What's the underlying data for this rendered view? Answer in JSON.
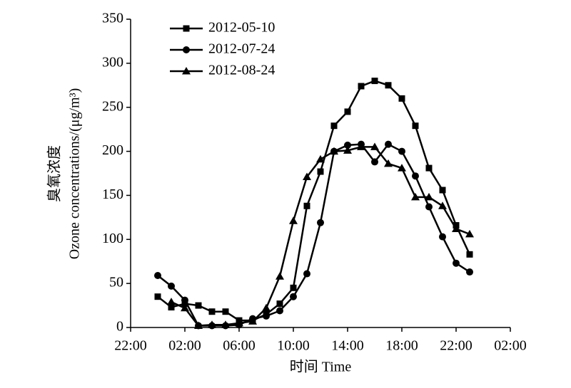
{
  "chart_data": {
    "type": "line",
    "y_label_cn": "臭氧浓度",
    "y_label": "Ozone concentrations/(μg/m³)",
    "x_label": "时间 Time",
    "x": [
      24,
      25,
      26,
      27,
      28,
      29,
      30,
      31,
      32,
      33,
      34,
      35,
      36,
      37,
      38,
      39,
      40,
      41,
      42,
      43,
      44,
      45,
      46,
      47
    ],
    "series": [
      {
        "name": "2012-05-10",
        "color": "#000000",
        "marker": "square",
        "values": [
          35,
          23,
          27,
          25,
          18,
          18,
          8,
          8,
          15,
          27,
          45,
          138,
          177,
          229,
          245,
          274,
          280,
          275,
          260,
          229,
          181,
          156,
          116,
          83
        ]
      },
      {
        "name": "2012-07-24",
        "color": "#000000",
        "marker": "circle",
        "values": [
          59,
          47,
          31,
          2,
          2,
          2,
          3,
          10,
          13,
          19,
          35,
          61,
          119,
          200,
          207,
          208,
          188,
          208,
          200,
          172,
          137,
          103,
          73,
          63
        ]
      },
      {
        "name": "2012-08-24",
        "color": "#000000",
        "marker": "triangle",
        "values": [
          null,
          29,
          22,
          2,
          3,
          3,
          5,
          7,
          22,
          58,
          121,
          171,
          191,
          200,
          201,
          205,
          205,
          186,
          181,
          148,
          148,
          138,
          112,
          106
        ]
      }
    ],
    "xlim": [
      22,
      50
    ],
    "xticks": [
      {
        "value": 22,
        "label": "22:00"
      },
      {
        "value": 26,
        "label": "02:00"
      },
      {
        "value": 30,
        "label": "06:00"
      },
      {
        "value": 34,
        "label": "10:00"
      },
      {
        "value": 38,
        "label": "14:00"
      },
      {
        "value": 42,
        "label": "18:00"
      },
      {
        "value": 46,
        "label": "22:00"
      },
      {
        "value": 50,
        "label": "02:00"
      }
    ],
    "ylim": [
      0,
      350
    ],
    "yticks": [
      0,
      50,
      100,
      150,
      200,
      250,
      300,
      350
    ],
    "grid": false
  }
}
